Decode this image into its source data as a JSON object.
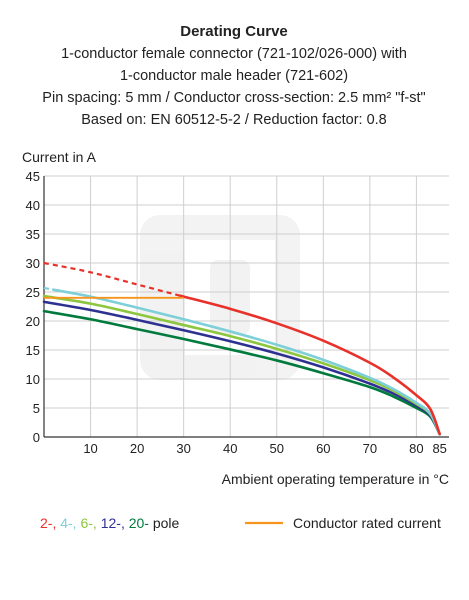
{
  "chart_data": {
    "type": "line",
    "title": "Derating Curve",
    "subtitle_lines": [
      "1-conductor female connector (721-102/026-000) with",
      "1-conductor male header (721-602)",
      "Pin spacing: 5 mm / Conductor cross-section: 2.5 mm² \"f-st\"",
      "Based on: EN 60512-5-2 / Reduction factor: 0.8"
    ],
    "ylabel": "Current in A",
    "xlabel": "Ambient operating temperature in °C",
    "xlim": [
      0,
      87
    ],
    "ylim": [
      0,
      45
    ],
    "x_ticks": [
      10,
      20,
      30,
      40,
      50,
      60,
      70,
      80,
      85
    ],
    "y_ticks": [
      0,
      5,
      10,
      15,
      20,
      25,
      30,
      35,
      40,
      45
    ],
    "grid": true,
    "series": [
      {
        "name": "2-",
        "color": "#e8312a",
        "dashed_until_x": 30,
        "points": [
          [
            0,
            30
          ],
          [
            10,
            28.4
          ],
          [
            20,
            26.3
          ],
          [
            30,
            24.2
          ],
          [
            40,
            22.1
          ],
          [
            50,
            19.6
          ],
          [
            60,
            16.6
          ],
          [
            70,
            12.8
          ],
          [
            75,
            10.3
          ],
          [
            80,
            7.2
          ],
          [
            83,
            4.8
          ],
          [
            85,
            0.5
          ]
        ]
      },
      {
        "name": "4-",
        "color": "#7dcfd8",
        "dashed_until_x": 2,
        "points": [
          [
            0,
            25.7
          ],
          [
            10,
            24.2
          ],
          [
            20,
            22.3
          ],
          [
            30,
            20.3
          ],
          [
            40,
            18.2
          ],
          [
            50,
            15.9
          ],
          [
            60,
            13.3
          ],
          [
            70,
            10.2
          ],
          [
            75,
            8.3
          ],
          [
            80,
            5.9
          ],
          [
            83,
            4.0
          ],
          [
            85,
            0.5
          ]
        ]
      },
      {
        "name": "6-",
        "color": "#8dc63f",
        "dashed_until_x": 0,
        "points": [
          [
            0,
            24.3
          ],
          [
            10,
            23.0
          ],
          [
            20,
            21.2
          ],
          [
            30,
            19.3
          ],
          [
            40,
            17.4
          ],
          [
            50,
            15.2
          ],
          [
            60,
            12.7
          ],
          [
            70,
            9.8
          ],
          [
            75,
            8.0
          ],
          [
            80,
            5.7
          ],
          [
            83,
            3.9
          ],
          [
            85,
            0.5
          ]
        ]
      },
      {
        "name": "12-",
        "color": "#2e3192",
        "dashed_until_x": 0,
        "points": [
          [
            0,
            23.3
          ],
          [
            10,
            21.9
          ],
          [
            20,
            20.2
          ],
          [
            30,
            18.4
          ],
          [
            40,
            16.5
          ],
          [
            50,
            14.4
          ],
          [
            60,
            12.0
          ],
          [
            70,
            9.2
          ],
          [
            75,
            7.5
          ],
          [
            80,
            5.4
          ],
          [
            83,
            3.7
          ],
          [
            85,
            0.5
          ]
        ]
      },
      {
        "name": "20-",
        "color": "#007a3d",
        "dashed_until_x": 0,
        "points": [
          [
            0,
            21.7
          ],
          [
            10,
            20.3
          ],
          [
            20,
            18.6
          ],
          [
            30,
            16.9
          ],
          [
            40,
            15.1
          ],
          [
            50,
            13.2
          ],
          [
            60,
            11.0
          ],
          [
            70,
            8.6
          ],
          [
            75,
            7.0
          ],
          [
            80,
            5.0
          ],
          [
            83,
            3.5
          ],
          [
            85,
            0.5
          ]
        ]
      }
    ],
    "rated_current": {
      "name": "Conductor rated current",
      "color": "#f7941d",
      "value": 24,
      "x_range": [
        0,
        30
      ]
    },
    "legend": {
      "placement": "bottom",
      "pole_suffix": "pole",
      "separator": ", "
    }
  }
}
